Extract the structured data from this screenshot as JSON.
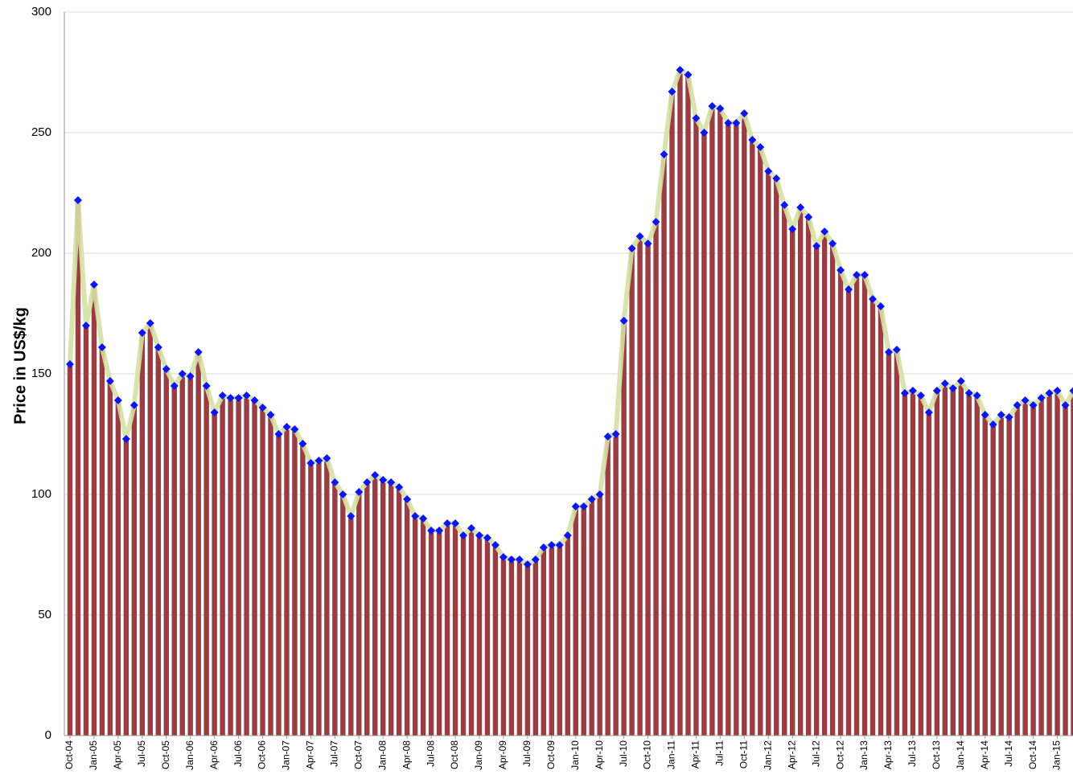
{
  "chart_data": {
    "type": "bar",
    "y_label": "Price in US$/kg",
    "categories": [
      "Oct-04",
      null,
      null,
      "Jan-05",
      null,
      null,
      "Apr-05",
      null,
      null,
      "Jul-05",
      null,
      null,
      "Oct-05",
      null,
      null,
      "Jan-06",
      null,
      null,
      "Apr-06",
      null,
      null,
      "Jul-06",
      null,
      null,
      "Oct-06",
      null,
      null,
      "Jan-07",
      null,
      null,
      "Apr-07",
      null,
      null,
      "Jul-07",
      null,
      null,
      "Oct-07",
      null,
      null,
      "Jan-08",
      null,
      null,
      "Apr-08",
      null,
      null,
      "Jul-08",
      null,
      null,
      "Oct-08",
      null,
      null,
      "Jan-09",
      null,
      null,
      "Apr-09",
      null,
      null,
      "Jul-09",
      null,
      null,
      "Oct-09",
      null,
      null,
      "Jan-10",
      null,
      null,
      "Apr-10",
      null,
      null,
      "Jul-10",
      null,
      null,
      "Oct-10",
      null,
      null,
      "Jan-11",
      null,
      null,
      "Apr-11",
      null,
      null,
      "Jul-11",
      null,
      null,
      "Oct-11",
      null,
      null,
      "Jan-12",
      null,
      null,
      "Apr-12",
      null,
      null,
      "Jul-12",
      null,
      null,
      "Oct-12",
      null,
      null,
      "Jan-13",
      null,
      null,
      "Apr-13",
      null,
      null,
      "Jul-13",
      null,
      null,
      "Oct-13",
      null,
      null,
      "Jan-14",
      null,
      null,
      "Apr-14",
      null,
      null,
      "Jul-14",
      null,
      null,
      "Oct-14",
      null,
      null,
      "Jan-15",
      null,
      null
    ],
    "values": [
      154,
      222,
      170,
      187,
      161,
      147,
      139,
      123,
      137,
      167,
      171,
      161,
      152,
      145,
      150,
      149,
      159,
      145,
      134,
      141,
      140,
      140,
      141,
      139,
      136,
      133,
      125,
      128,
      127,
      121,
      113,
      114,
      115,
      105,
      100,
      91,
      101,
      105,
      108,
      106,
      105,
      103,
      98,
      91,
      90,
      85,
      85,
      88,
      88,
      83,
      86,
      83,
      82,
      79,
      74,
      73,
      73,
      71,
      73,
      78,
      79,
      79,
      83,
      95,
      95,
      98,
      100,
      124,
      125,
      172,
      202,
      207,
      204,
      213,
      241,
      267,
      276,
      274,
      256,
      250,
      261,
      260,
      254,
      254,
      258,
      247,
      244,
      234,
      231,
      220,
      210,
      219,
      215,
      203,
      209,
      204,
      193,
      185,
      191,
      191,
      181,
      178,
      159,
      160,
      142,
      143,
      141,
      134,
      143,
      146,
      144,
      147,
      142,
      141,
      133,
      129,
      133,
      132,
      137,
      139,
      137,
      140,
      142,
      143,
      137,
      143
    ],
    "color": "#9c3b40",
    "line_color": "#d5e1a3",
    "marker_color": "#0a14ff",
    "ylim": [
      0,
      300
    ],
    "yticks": [
      0,
      50,
      100,
      150,
      200,
      250,
      300
    ],
    "grid": true
  }
}
